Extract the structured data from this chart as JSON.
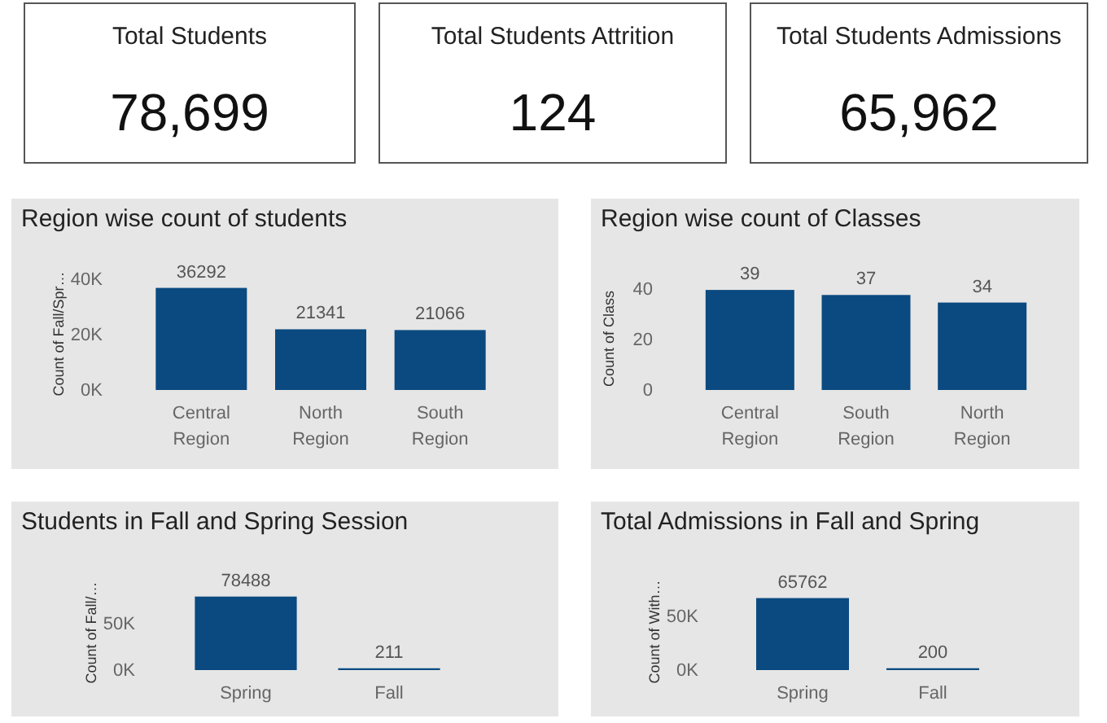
{
  "chart_data": [
    {
      "type": "other",
      "title": "Total Students",
      "value_labels": [
        "78,699"
      ]
    },
    {
      "type": "other",
      "title": "Total Students Attrition",
      "value_labels": [
        "124"
      ]
    },
    {
      "type": "other",
      "title": "Total Students Admissions",
      "value_labels": [
        "65,962"
      ]
    },
    {
      "type": "bar",
      "title": "Region wise count of students",
      "ylabel": "Count of Fall/Spr…",
      "categories": [
        "Central Region",
        "North Region",
        "South Region"
      ],
      "values": [
        36292,
        21341,
        21066
      ],
      "color": "#0b4a80",
      "ylim": [
        0,
        40000
      ],
      "yticks": [
        {
          "value": 0,
          "label": "0K"
        },
        {
          "value": 20000,
          "label": "20K"
        },
        {
          "value": 40000,
          "label": "40K"
        }
      ],
      "data_labels": true
    },
    {
      "type": "bar",
      "title": "Region wise count of Classes",
      "ylabel": "Count of Class",
      "categories": [
        "Central Region",
        "South Region",
        "North Region"
      ],
      "values": [
        39,
        37,
        34
      ],
      "color": "#0b4a80",
      "ylim": [
        0,
        40
      ],
      "yticks": [
        0,
        20,
        40
      ],
      "data_labels": true
    },
    {
      "type": "bar",
      "title": "Students in Fall and Spring Session",
      "ylabel": "Count of Fall/…",
      "categories": [
        "Spring",
        "Fall"
      ],
      "values": [
        78488,
        211
      ],
      "color": "#0b4a80",
      "ylim": [
        0,
        80000
      ],
      "yticks": [
        {
          "value": 0,
          "label": "0K"
        },
        {
          "value": 50000,
          "label": "50K"
        }
      ],
      "data_labels": true
    },
    {
      "type": "bar",
      "title": "Total Admissions in Fall and Spring",
      "ylabel": "Count of With…",
      "categories": [
        "Spring",
        "Fall"
      ],
      "values": [
        65762,
        200
      ],
      "color": "#0b4a80",
      "ylim": [
        0,
        70000
      ],
      "yticks": [
        {
          "value": 0,
          "label": "0K"
        },
        {
          "value": 50000,
          "label": "50K"
        }
      ],
      "data_labels": true
    }
  ]
}
